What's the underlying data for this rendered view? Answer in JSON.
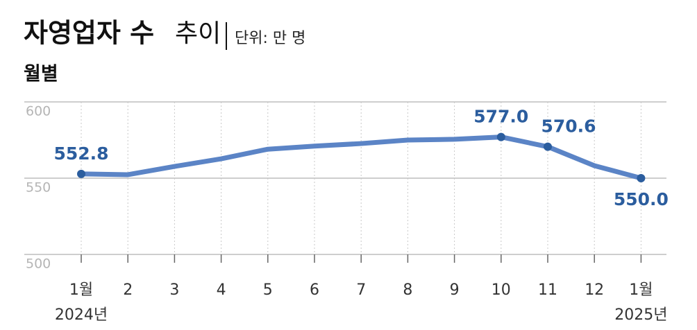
{
  "title": "자영업자 수",
  "title_suffix": "추이",
  "unit": "단위: 만 명",
  "subtitle": "월별",
  "chart_data": {
    "type": "line",
    "categories": [
      "1월",
      "2",
      "3",
      "4",
      "5",
      "6",
      "7",
      "8",
      "9",
      "10",
      "11",
      "12",
      "1월"
    ],
    "category_years": [
      "2024년",
      null,
      null,
      null,
      null,
      null,
      null,
      null,
      null,
      null,
      null,
      null,
      "2025년"
    ],
    "series": [
      {
        "color": "#5b84c6",
        "marker_color": "#2b5d9e",
        "values": [
          552.8,
          552.3,
          557.7,
          562.7,
          569,
          571,
          572.7,
          575,
          575.5,
          577.0,
          570.6,
          558.2,
          550.0
        ],
        "value_labels": [
          "552.8",
          null,
          null,
          null,
          null,
          null,
          null,
          null,
          null,
          "577.0",
          "570.6",
          null,
          "550.0"
        ]
      }
    ],
    "ylim": [
      500,
      600
    ],
    "yticks": [
      500,
      550,
      600
    ],
    "grid": true
  }
}
